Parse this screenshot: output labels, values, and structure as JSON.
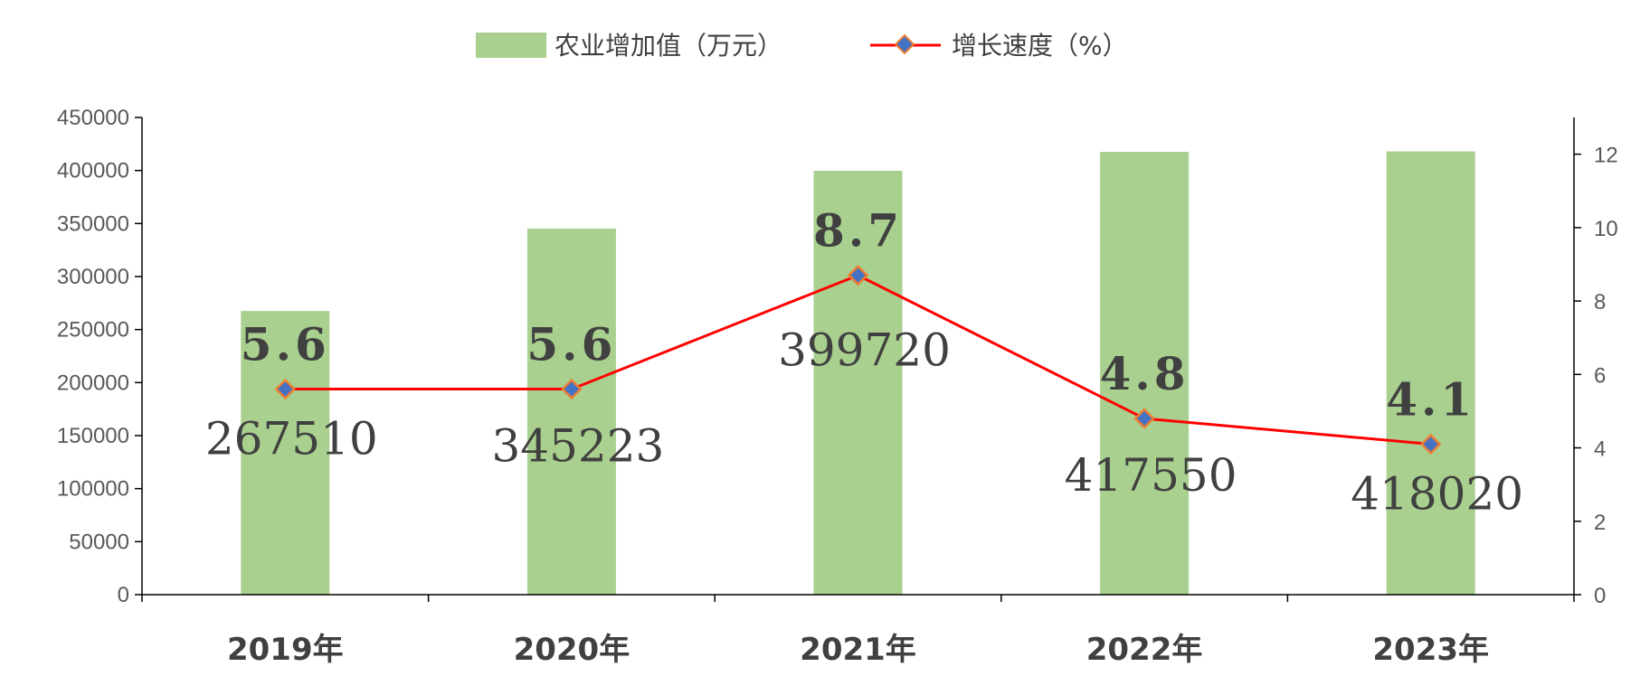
{
  "chart_data": {
    "type": "bar",
    "categories": [
      "2019年",
      "2020年",
      "2021年",
      "2022年",
      "2023年"
    ],
    "series": [
      {
        "name": "农业增加值（万元）",
        "type": "bar",
        "axis": "left",
        "color": "#a9d08e",
        "values": [
          267510,
          345223,
          399720,
          417550,
          418020
        ],
        "labels": [
          "267510",
          "345223",
          "399720",
          "417550",
          "418020"
        ]
      },
      {
        "name": "增长速度（%）",
        "type": "line",
        "axis": "right",
        "color": "#ff0000",
        "marker_color": "#4472c4",
        "marker_edge": "#ed7d31",
        "values": [
          5.6,
          5.6,
          8.7,
          4.8,
          4.1
        ],
        "labels": [
          "5.6",
          "5.6",
          "8.7",
          "4.8",
          "4.1"
        ]
      }
    ],
    "y_left": {
      "min": 0,
      "max": 450000,
      "ticks": [
        "0",
        "50000",
        "100000",
        "150000",
        "200000",
        "250000",
        "300000",
        "350000",
        "400000",
        "450000"
      ]
    },
    "y_right": {
      "min": 0,
      "max": 13,
      "ticks": [
        "0",
        "2",
        "4",
        "6",
        "8",
        "10",
        "12"
      ]
    },
    "legend_position": "top-center",
    "grid": false
  }
}
